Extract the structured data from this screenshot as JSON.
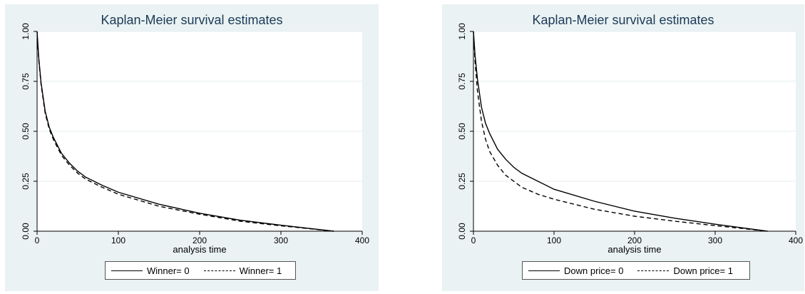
{
  "chart_data": [
    {
      "type": "line",
      "title": "Kaplan-Meier survival estimates",
      "xlabel": "analysis time",
      "ylabel": "",
      "xlim": [
        0,
        400
      ],
      "ylim": [
        0,
        1
      ],
      "xticks": [
        0,
        100,
        200,
        300,
        400
      ],
      "yticks": [
        0,
        0.25,
        0.5,
        0.75,
        1
      ],
      "ytick_labels": [
        "0.00",
        "0.25",
        "0.50",
        "0.75",
        "1.00"
      ],
      "grid": true,
      "legend_position": "bottom",
      "series": [
        {
          "name": "Winner= 0",
          "style": "solid",
          "x": [
            0,
            2,
            5,
            10,
            15,
            20,
            30,
            40,
            50,
            60,
            80,
            100,
            150,
            200,
            250,
            300,
            365
          ],
          "y": [
            1.0,
            0.87,
            0.74,
            0.6,
            0.52,
            0.47,
            0.39,
            0.34,
            0.3,
            0.27,
            0.23,
            0.195,
            0.135,
            0.09,
            0.055,
            0.03,
            0.0
          ]
        },
        {
          "name": "Winner= 1",
          "style": "dashed",
          "x": [
            0,
            2,
            5,
            10,
            15,
            20,
            30,
            40,
            50,
            60,
            80,
            100,
            150,
            200,
            250,
            300,
            365
          ],
          "y": [
            1.0,
            0.86,
            0.73,
            0.59,
            0.51,
            0.46,
            0.38,
            0.33,
            0.29,
            0.26,
            0.22,
            0.185,
            0.125,
            0.085,
            0.05,
            0.027,
            0.0
          ]
        }
      ]
    },
    {
      "type": "line",
      "title": "Kaplan-Meier survival estimates",
      "xlabel": "analysis time",
      "ylabel": "",
      "xlim": [
        0,
        400
      ],
      "ylim": [
        0,
        1
      ],
      "xticks": [
        0,
        100,
        200,
        300,
        400
      ],
      "yticks": [
        0,
        0.25,
        0.5,
        0.75,
        1
      ],
      "ytick_labels": [
        "0.00",
        "0.25",
        "0.50",
        "0.75",
        "1.00"
      ],
      "grid": true,
      "legend_position": "bottom",
      "series": [
        {
          "name": "Down price= 0",
          "style": "solid",
          "x": [
            0,
            2,
            5,
            10,
            15,
            20,
            30,
            40,
            50,
            60,
            80,
            100,
            150,
            200,
            250,
            300,
            365
          ],
          "y": [
            1.0,
            0.88,
            0.76,
            0.62,
            0.54,
            0.49,
            0.41,
            0.36,
            0.32,
            0.29,
            0.25,
            0.21,
            0.15,
            0.1,
            0.065,
            0.035,
            0.0
          ]
        },
        {
          "name": "Down price= 1",
          "style": "dashed",
          "x": [
            0,
            2,
            5,
            10,
            15,
            20,
            30,
            40,
            50,
            60,
            80,
            100,
            150,
            200,
            250,
            300,
            365
          ],
          "y": [
            1.0,
            0.85,
            0.7,
            0.55,
            0.46,
            0.4,
            0.33,
            0.28,
            0.25,
            0.22,
            0.185,
            0.16,
            0.11,
            0.075,
            0.05,
            0.028,
            0.0
          ]
        }
      ]
    }
  ],
  "panels": [
    {
      "title": "Kaplan-Meier survival estimates",
      "xlabel": "analysis time",
      "legend": [
        "Winner= 0",
        "Winner= 1"
      ]
    },
    {
      "title": "Kaplan-Meier survival estimates",
      "xlabel": "analysis time",
      "legend": [
        "Down price= 0",
        "Down price= 1"
      ]
    }
  ]
}
